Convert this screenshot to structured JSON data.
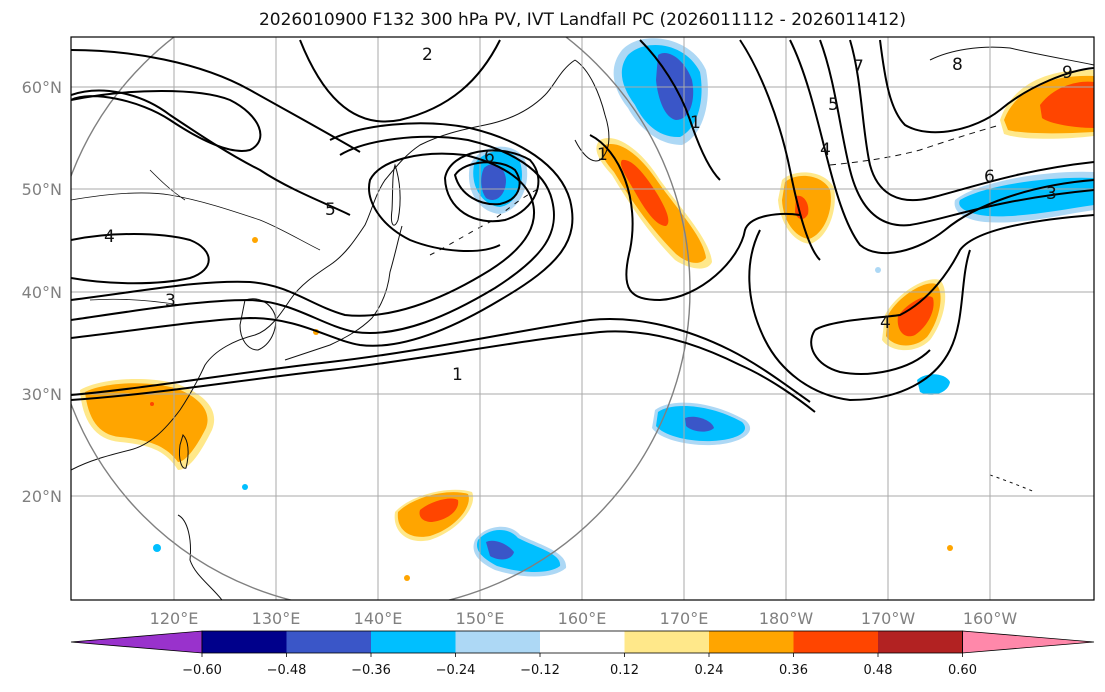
{
  "title": "2026010900 F132 300 hPa PV, IVT Landfall PC (2026011112 - 2026011412)",
  "map": {
    "lon_ticks": [
      "120°E",
      "130°E",
      "140°E",
      "150°E",
      "160°E",
      "170°E",
      "180°W",
      "170°W",
      "160°W"
    ],
    "lat_ticks": [
      "60°N",
      "50°N",
      "40°N",
      "30°N",
      "20°N"
    ],
    "contour_labels": [
      "1",
      "1",
      "1",
      "2",
      "3",
      "3",
      "4",
      "4",
      "4",
      "5",
      "5",
      "6",
      "6",
      "7",
      "8",
      "9"
    ],
    "colors": {
      "strong_neg": "#3a56c8",
      "mid_neg": "#00bfff",
      "weak_neg": "#add8f5",
      "weak_pos": "#ffe88a",
      "mid_pos": "#ffa500",
      "strong_pos": "#ff4500",
      "grid": "#aaaaaa",
      "circle": "#808080"
    }
  },
  "colorbar": {
    "ticks": [
      "−0.60",
      "−0.48",
      "−0.36",
      "−0.24",
      "−0.12",
      "0.12",
      "0.24",
      "0.36",
      "0.48",
      "0.60"
    ],
    "colors": [
      "#9932cc",
      "#00008b",
      "#3a56c8",
      "#00bfff",
      "#add8f5",
      "#ffffff",
      "#ffe88a",
      "#ffa500",
      "#ff4500",
      "#b22222",
      "#ff88aa"
    ]
  }
}
